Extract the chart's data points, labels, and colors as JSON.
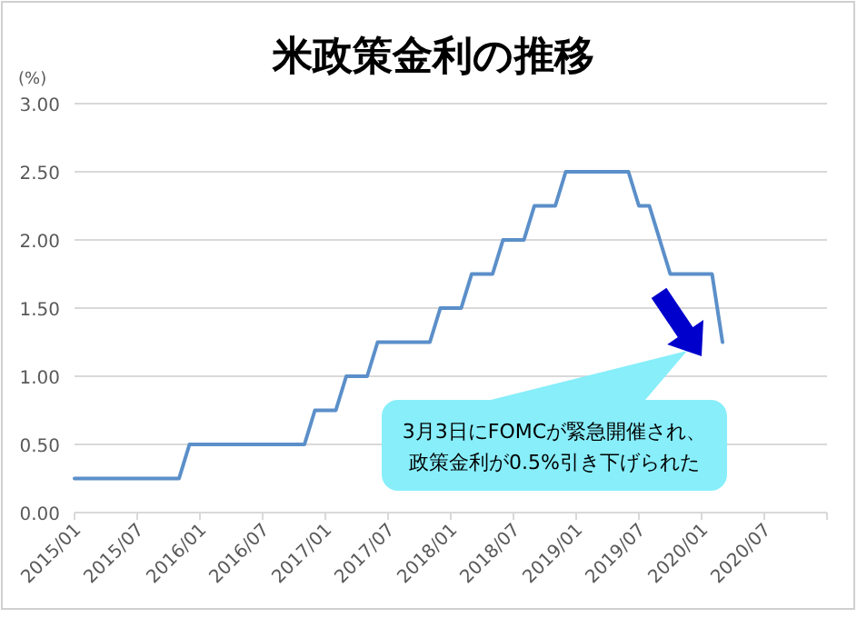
{
  "chart_data": {
    "type": "line",
    "title": "米政策金利の推移",
    "ylabel": "(%)",
    "x": [
      "2015-01",
      "2015-11",
      "2015-12",
      "2016-11",
      "2016-12",
      "2017-02",
      "2017-03",
      "2017-05",
      "2017-06",
      "2017-11",
      "2017-12",
      "2018-02",
      "2018-03",
      "2018-05",
      "2018-06",
      "2018-08",
      "2018-09",
      "2018-11",
      "2018-12",
      "2019-06",
      "2019-07",
      "2019-08",
      "2019-09",
      "2019-10",
      "2020-02",
      "2020-03"
    ],
    "series": [
      {
        "color": "#5b8fc9",
        "values": [
          0.25,
          0.25,
          0.5,
          0.5,
          0.75,
          0.75,
          1.0,
          1.0,
          1.25,
          1.25,
          1.5,
          1.5,
          1.75,
          1.75,
          2.0,
          2.0,
          2.25,
          2.25,
          2.5,
          2.5,
          2.25,
          2.25,
          2.0,
          1.75,
          1.75,
          1.25
        ]
      }
    ],
    "xlim": [
      "2015-01",
      "2021-01"
    ],
    "xticks": [
      {
        "value": "2015-01",
        "label": "2015/01"
      },
      {
        "value": "2015-07",
        "label": "2015/07"
      },
      {
        "value": "2016-01",
        "label": "2016/01"
      },
      {
        "value": "2016-07",
        "label": "2016/07"
      },
      {
        "value": "2017-01",
        "label": "2017/01"
      },
      {
        "value": "2017-07",
        "label": "2017/07"
      },
      {
        "value": "2018-01",
        "label": "2018/01"
      },
      {
        "value": "2018-07",
        "label": "2018/07"
      },
      {
        "value": "2019-01",
        "label": "2019/01"
      },
      {
        "value": "2019-07",
        "label": "2019/07"
      },
      {
        "value": "2020-01",
        "label": "2020/01"
      },
      {
        "value": "2020-07",
        "label": "2020/07"
      },
      {
        "value": "2021-01",
        "label": null
      }
    ],
    "ylim": [
      0,
      3
    ],
    "yticks": [
      {
        "value": 0,
        "label": "0.00"
      },
      {
        "value": 0.5,
        "label": "0.50"
      },
      {
        "value": 1,
        "label": "1.00"
      },
      {
        "value": 1.5,
        "label": "1.50"
      },
      {
        "value": 2,
        "label": "2.00"
      },
      {
        "value": 2.5,
        "label": "2.50"
      },
      {
        "value": 3,
        "label": "3.00"
      }
    ],
    "grid": "y",
    "marker": "none",
    "line_style": "solid",
    "annotations": [
      "3月3日にFOMCが緊急開催され、政策金利が0.5%引き下げられた"
    ]
  }
}
